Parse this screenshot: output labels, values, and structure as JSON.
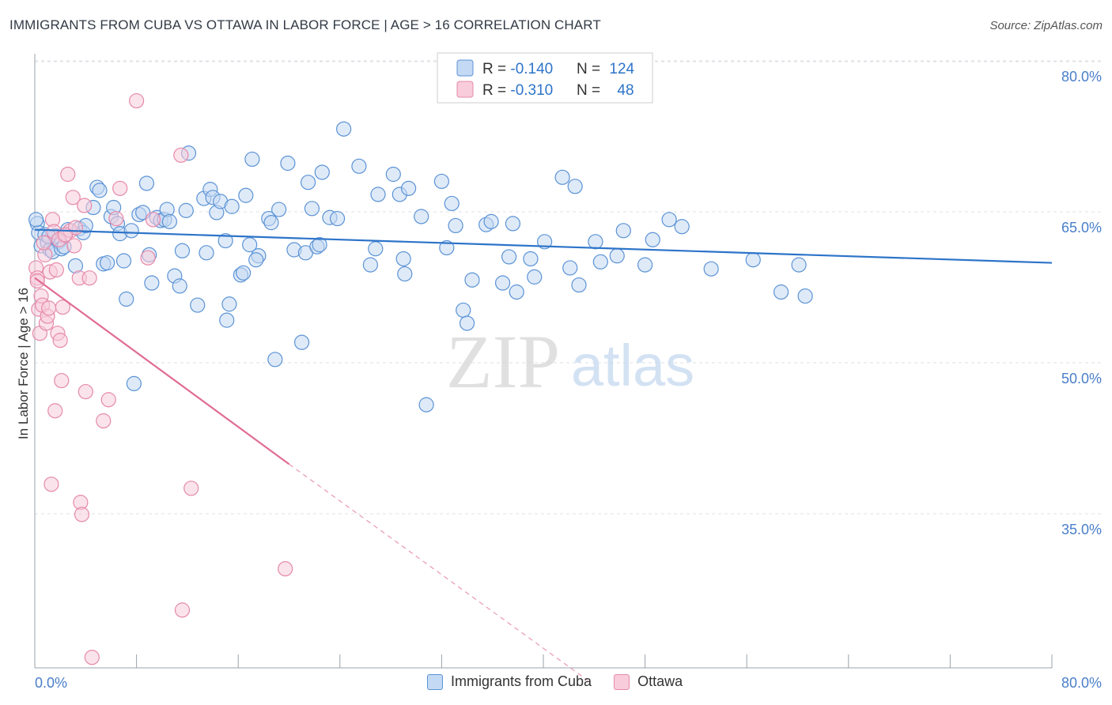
{
  "header": {
    "title": "IMMIGRANTS FROM CUBA VS OTTAWA IN LABOR FORCE | AGE > 16 CORRELATION CHART",
    "source": "Source: ZipAtlas.com"
  },
  "watermark": {
    "zip": "ZIP",
    "atlas": "atlas"
  },
  "colors": {
    "blue": "#5b93d6",
    "blue_fill": "#c4d9f3",
    "blue_line": "#2d74c9",
    "pink": "#e58aaa",
    "pink_fill": "#f8ccdb",
    "pink_line": "#e06c94",
    "axis_text": "#4a7fc9"
  },
  "legend_top": {
    "rows": [
      {
        "r_label": "R = ",
        "r_value": "-0.140",
        "n_label": "N = ",
        "n_value": "124"
      },
      {
        "r_label": "R = ",
        "r_value": "-0.310",
        "n_label": "N = ",
        "n_value": "48"
      }
    ]
  },
  "legend_bottom": [
    {
      "label": "Immigrants from Cuba"
    },
    {
      "label": "Ottawa"
    }
  ],
  "chart_data": {
    "type": "scatter",
    "title": "IMMIGRANTS FROM CUBA VS OTTAWA IN LABOR FORCE | AGE > 16 CORRELATION CHART",
    "xlabel": "",
    "ylabel": "In Labor Force | Age > 16",
    "xlim": [
      0,
      80
    ],
    "ylim": [
      20,
      82
    ],
    "x_tick_labels": [
      "0.0%",
      "80.0%"
    ],
    "y_ticks": [
      35,
      50,
      65,
      80
    ],
    "y_tick_labels": [
      "35.0%",
      "50.0%",
      "65.0%",
      "80.0%"
    ],
    "grid": true,
    "legend_position": "top-center",
    "series": [
      {
        "name": "Immigrants from Cuba",
        "r": -0.14,
        "n": 124,
        "trend": {
          "x": [
            0,
            80
          ],
          "y": [
            64.8,
            61.5
          ]
        },
        "points": [
          [
            0.2,
            65.4
          ],
          [
            0.3,
            64.5
          ],
          [
            0.5,
            63.2
          ],
          [
            0.8,
            64.3
          ],
          [
            1.0,
            63.5
          ],
          [
            1.2,
            62.8
          ],
          [
            1.4,
            62.6
          ],
          [
            1.6,
            64.2
          ],
          [
            1.9,
            63.6
          ],
          [
            2.1,
            62.9
          ],
          [
            2.3,
            63.1
          ],
          [
            2.6,
            64.8
          ],
          [
            3.2,
            61.2
          ],
          [
            3.5,
            64.9
          ],
          [
            3.8,
            64.5
          ],
          [
            4.0,
            65.2
          ],
          [
            4.6,
            67.0
          ],
          [
            4.9,
            69.0
          ],
          [
            5.1,
            68.7
          ],
          [
            5.4,
            61.4
          ],
          [
            5.7,
            61.5
          ],
          [
            6.0,
            66.1
          ],
          [
            6.2,
            67.0
          ],
          [
            6.5,
            65.4
          ],
          [
            6.7,
            64.4
          ],
          [
            7.0,
            61.7
          ],
          [
            7.2,
            57.9
          ],
          [
            7.6,
            64.7
          ],
          [
            7.8,
            49.5
          ],
          [
            8.2,
            66.3
          ],
          [
            8.5,
            66.5
          ],
          [
            8.8,
            69.4
          ],
          [
            9.0,
            62.3
          ],
          [
            9.2,
            59.5
          ],
          [
            9.6,
            66.0
          ],
          [
            9.9,
            65.7
          ],
          [
            10.2,
            65.8
          ],
          [
            10.4,
            66.8
          ],
          [
            10.6,
            65.6
          ],
          [
            11.0,
            60.2
          ],
          [
            11.4,
            59.2
          ],
          [
            11.6,
            62.7
          ],
          [
            11.9,
            66.7
          ],
          [
            12.1,
            72.4
          ],
          [
            12.8,
            57.3
          ],
          [
            13.3,
            67.9
          ],
          [
            13.5,
            62.5
          ],
          [
            13.8,
            68.8
          ],
          [
            14.0,
            68.0
          ],
          [
            14.3,
            66.5
          ],
          [
            14.6,
            67.6
          ],
          [
            15.0,
            63.7
          ],
          [
            15.3,
            57.4
          ],
          [
            15.5,
            67.1
          ],
          [
            15.1,
            55.8
          ],
          [
            16.2,
            60.3
          ],
          [
            16.4,
            60.5
          ],
          [
            16.6,
            68.2
          ],
          [
            16.9,
            63.3
          ],
          [
            17.1,
            71.8
          ],
          [
            17.6,
            62.2
          ],
          [
            17.4,
            61.8
          ],
          [
            18.4,
            65.9
          ],
          [
            18.6,
            65.5
          ],
          [
            18.9,
            51.9
          ],
          [
            19.2,
            66.8
          ],
          [
            19.9,
            71.4
          ],
          [
            20.4,
            62.8
          ],
          [
            21.0,
            53.6
          ],
          [
            21.3,
            62.5
          ],
          [
            21.5,
            69.5
          ],
          [
            21.8,
            66.9
          ],
          [
            22.2,
            63.1
          ],
          [
            22.4,
            63.3
          ],
          [
            22.6,
            70.5
          ],
          [
            23.2,
            66.0
          ],
          [
            23.8,
            65.9
          ],
          [
            24.3,
            74.8
          ],
          [
            25.5,
            71.1
          ],
          [
            26.4,
            61.3
          ],
          [
            26.8,
            62.9
          ],
          [
            27.0,
            68.3
          ],
          [
            28.2,
            70.3
          ],
          [
            28.7,
            68.3
          ],
          [
            29.0,
            61.9
          ],
          [
            29.1,
            60.4
          ],
          [
            29.4,
            68.9
          ],
          [
            30.4,
            66.1
          ],
          [
            30.8,
            47.4
          ],
          [
            32.0,
            69.6
          ],
          [
            32.4,
            63.0
          ],
          [
            32.8,
            67.4
          ],
          [
            33.1,
            65.2
          ],
          [
            33.7,
            56.8
          ],
          [
            34.0,
            55.5
          ],
          [
            34.4,
            59.8
          ],
          [
            35.5,
            65.3
          ],
          [
            35.9,
            65.6
          ],
          [
            36.8,
            59.5
          ],
          [
            37.3,
            62.1
          ],
          [
            37.6,
            65.4
          ],
          [
            37.9,
            58.6
          ],
          [
            39.0,
            61.9
          ],
          [
            39.3,
            60.1
          ],
          [
            40.1,
            63.6
          ],
          [
            41.5,
            70.0
          ],
          [
            42.1,
            61.0
          ],
          [
            42.5,
            69.1
          ],
          [
            42.8,
            59.3
          ],
          [
            44.1,
            63.6
          ],
          [
            44.5,
            61.6
          ],
          [
            45.8,
            62.2
          ],
          [
            46.3,
            64.7
          ],
          [
            48.0,
            61.3
          ],
          [
            48.6,
            63.8
          ],
          [
            49.9,
            65.8
          ],
          [
            50.9,
            65.1
          ],
          [
            53.2,
            60.9
          ],
          [
            56.5,
            61.8
          ],
          [
            58.7,
            58.6
          ],
          [
            60.1,
            61.3
          ],
          [
            60.6,
            58.2
          ],
          [
            0.1,
            65.8
          ],
          [
            1.1,
            64.1
          ]
        ]
      },
      {
        "name": "Ottawa",
        "r": -0.31,
        "n": 48,
        "trend": {
          "x": [
            0,
            20
          ],
          "y": [
            60.0,
            41.5
          ]
        },
        "trend_dashed": {
          "x": [
            20,
            43.5
          ],
          "y": [
            41.5,
            20
          ]
        },
        "points": [
          [
            0.1,
            61.0
          ],
          [
            0.2,
            60.0
          ],
          [
            0.3,
            56.9
          ],
          [
            0.4,
            54.5
          ],
          [
            0.5,
            58.2
          ],
          [
            0.6,
            57.3
          ],
          [
            0.8,
            62.3
          ],
          [
            0.9,
            55.5
          ],
          [
            1.0,
            56.2
          ],
          [
            1.1,
            57.0
          ],
          [
            1.2,
            60.6
          ],
          [
            1.3,
            39.5
          ],
          [
            1.4,
            65.8
          ],
          [
            1.5,
            64.6
          ],
          [
            1.6,
            46.8
          ],
          [
            1.7,
            60.8
          ],
          [
            1.8,
            54.5
          ],
          [
            2.0,
            53.8
          ],
          [
            2.1,
            49.8
          ],
          [
            2.2,
            57.1
          ],
          [
            2.3,
            64.2
          ],
          [
            2.6,
            70.3
          ],
          [
            2.8,
            64.7
          ],
          [
            3.0,
            68.0
          ],
          [
            3.2,
            65.0
          ],
          [
            3.5,
            60.0
          ],
          [
            3.6,
            37.7
          ],
          [
            3.7,
            36.5
          ],
          [
            3.9,
            67.2
          ],
          [
            4.0,
            48.7
          ],
          [
            4.3,
            60.0
          ],
          [
            4.5,
            22.3
          ],
          [
            5.4,
            45.8
          ],
          [
            5.8,
            47.9
          ],
          [
            6.4,
            65.9
          ],
          [
            6.7,
            68.9
          ],
          [
            8.0,
            77.6
          ],
          [
            8.9,
            62.0
          ],
          [
            9.3,
            65.8
          ],
          [
            11.5,
            72.2
          ],
          [
            11.6,
            27.0
          ],
          [
            12.3,
            39.1
          ],
          [
            19.7,
            31.1
          ],
          [
            0.7,
            63.5
          ],
          [
            1.9,
            63.8
          ],
          [
            2.4,
            64.3
          ],
          [
            0.2,
            59.7
          ],
          [
            3.1,
            63.2
          ]
        ]
      }
    ]
  }
}
